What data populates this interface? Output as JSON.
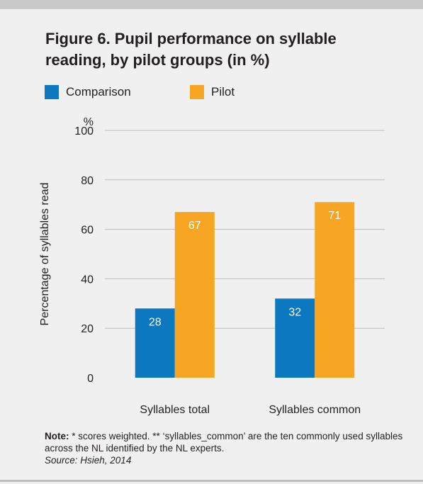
{
  "title": "Figure 6. Pupil performance on syllable reading, by pilot groups  (in %)",
  "colors": {
    "comparison": "#0b78bf",
    "pilot": "#f6a623"
  },
  "note": {
    "label": "Note:",
    "text": " * scores weighted. ** ‘syllables_common’ are the ten commonly used syllables across the NL identified by the NL experts.",
    "source": "Source: Hsieh, 2014"
  },
  "chart_data": {
    "type": "bar",
    "title": "Figure 6. Pupil performance on syllable reading, by pilot groups  (in %)",
    "ylabel": "Percentage of syllables read",
    "yunit": "%",
    "ylim": [
      0,
      100
    ],
    "yticks": [
      0,
      20,
      40,
      60,
      80,
      100
    ],
    "grid": true,
    "legend_position": "top-left",
    "categories": [
      "Syllables total",
      "Syllables common"
    ],
    "series": [
      {
        "name": "Comparison",
        "values": [
          28,
          32
        ],
        "color": "#0b78bf"
      },
      {
        "name": "Pilot",
        "values": [
          67,
          71
        ],
        "color": "#f6a623"
      }
    ]
  }
}
